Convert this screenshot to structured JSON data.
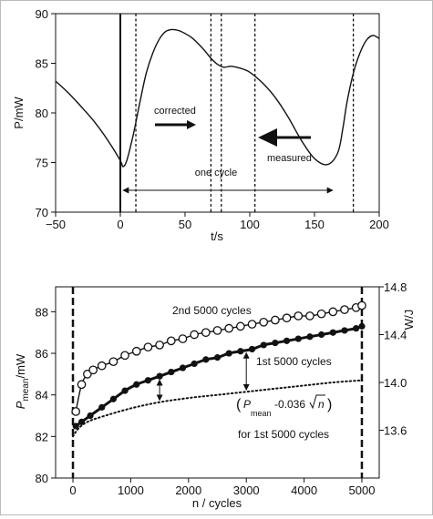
{
  "chart_data": [
    {
      "type": "line",
      "xlabel": "t/s",
      "ylabel": "P/mW",
      "xlim": [
        -50,
        200
      ],
      "ylim": [
        70,
        90
      ],
      "xticks": [
        "-50",
        "0",
        "50",
        "100",
        "150",
        "200"
      ],
      "yticks": [
        "70",
        "75",
        "80",
        "85",
        "90"
      ],
      "grid": false,
      "series": [
        {
          "x": [
            -50,
            -40,
            -30,
            -20,
            -10,
            0,
            2,
            5,
            10,
            15,
            20,
            25,
            30,
            35,
            40,
            45,
            50,
            55,
            60,
            65,
            70,
            75,
            80,
            85,
            90,
            95,
            100,
            110,
            120,
            130,
            140,
            150,
            160,
            168,
            172,
            175,
            180,
            185,
            190,
            195,
            200
          ],
          "y": [
            83.2,
            82.0,
            80.6,
            79.1,
            77.3,
            75.2,
            74.6,
            75.2,
            77.8,
            81.0,
            84.0,
            86.0,
            87.4,
            88.2,
            88.4,
            88.3,
            88.0,
            87.6,
            87.0,
            86.3,
            85.5,
            84.9,
            84.6,
            84.7,
            84.6,
            84.4,
            84.1,
            83.0,
            81.5,
            79.5,
            77.2,
            75.4,
            74.8,
            76.0,
            78.5,
            81.0,
            84.0,
            86.0,
            87.3,
            87.8,
            87.5
          ]
        }
      ],
      "vlines_solid": [
        0
      ],
      "vlines_dashed": [
        12,
        70,
        78,
        104,
        180
      ],
      "annotations": {
        "corrected": "corrected",
        "measured": "measured",
        "one_cycle": "one cycle"
      }
    },
    {
      "type": "scatter",
      "xlabel": "n / cycles",
      "ylabel": "P",
      "ylabel_sub": "mean",
      "ylabel_unit": "/mW",
      "y2label": "W/J",
      "xlim": [
        -300,
        5300
      ],
      "ylim": [
        80,
        89.2
      ],
      "y2lim": [
        13.2,
        14.8
      ],
      "xticks": [
        "0",
        "1000",
        "2000",
        "3000",
        "4000",
        "5000"
      ],
      "yticks": [
        "80",
        "82",
        "84",
        "86",
        "88"
      ],
      "y2ticks": [
        "13.6",
        "14.0",
        "14.4",
        "14.8"
      ],
      "vlines_dashed": [
        0,
        5000
      ],
      "series": [
        {
          "name": "2nd 5000 cycles",
          "marker": "open-circle",
          "x": [
            50,
            150,
            250,
            350,
            500,
            700,
            900,
            1100,
            1300,
            1500,
            1700,
            1900,
            2100,
            2300,
            2500,
            2700,
            2900,
            3100,
            3300,
            3500,
            3700,
            3900,
            4100,
            4300,
            4500,
            4700,
            4900,
            5000
          ],
          "y": [
            83.2,
            84.5,
            85.0,
            85.2,
            85.4,
            85.6,
            85.9,
            86.1,
            86.3,
            86.4,
            86.6,
            86.7,
            86.9,
            87.0,
            87.1,
            87.2,
            87.3,
            87.4,
            87.5,
            87.6,
            87.7,
            87.8,
            87.8,
            87.9,
            88.0,
            88.1,
            88.2,
            88.3
          ]
        },
        {
          "name": "1st 5000 cycles",
          "marker": "filled-circle",
          "x": [
            50,
            150,
            300,
            500,
            700,
            900,
            1100,
            1300,
            1500,
            1700,
            1900,
            2100,
            2300,
            2500,
            2700,
            2900,
            3100,
            3300,
            3500,
            3700,
            3900,
            4100,
            4300,
            4500,
            4700,
            4900,
            5000
          ],
          "y": [
            82.5,
            82.7,
            83.0,
            83.4,
            83.8,
            84.2,
            84.5,
            84.7,
            84.9,
            85.1,
            85.3,
            85.5,
            85.7,
            85.8,
            86.0,
            86.1,
            86.2,
            86.4,
            86.5,
            86.6,
            86.7,
            86.8,
            86.9,
            87.0,
            87.1,
            87.2,
            87.3
          ]
        },
        {
          "name": "for 1st 5000 cycles",
          "marker": "dotted-line",
          "x": [
            0,
            100,
            250,
            500,
            1000,
            1500,
            2000,
            2500,
            3000,
            3500,
            4000,
            4500,
            5000
          ],
          "y": [
            82.0,
            82.4,
            82.7,
            82.95,
            83.35,
            83.65,
            83.85,
            84.0,
            84.15,
            84.3,
            84.45,
            84.6,
            84.7
          ]
        }
      ],
      "annotations": {
        "second": "2nd 5000 cycles",
        "first": "1st 5000 cycles",
        "formula_p": "P",
        "formula_sub": "mean",
        "formula_rest": "-0.036",
        "formula_n": "n",
        "for_first": "for 1st 5000 cycles"
      }
    }
  ]
}
